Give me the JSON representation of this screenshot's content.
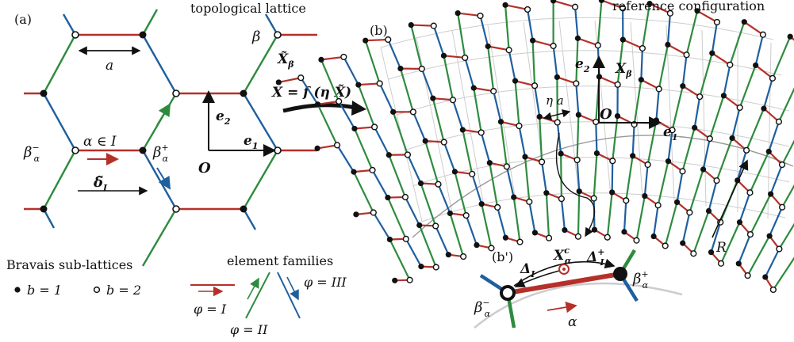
{
  "panels": {
    "a": {
      "tag": "(a)",
      "title": "topological lattice",
      "lattice_spacing": "a",
      "edge_label": "α ∈ I",
      "node_minus": "β",
      "node_plus": "β",
      "node_sub": "α",
      "minus_sup": "−",
      "plus_sup": "+",
      "beta_tilde": "β",
      "x_tilde_beta": "X̃",
      "x_tilde_sub": "β",
      "delta_tilde": "δ̃",
      "delta_sub": "I",
      "e1": "e",
      "e1_sub": "1",
      "e2": "e",
      "e2_sub": "2",
      "origin": "O"
    },
    "map_label": "X = f (η X̃)",
    "b": {
      "tag": "(b)",
      "title": "reference configuration",
      "x_beta": "X",
      "x_beta_sub": "β",
      "e1": "e",
      "e1_sub": "1",
      "e2": "e",
      "e2_sub": "2",
      "origin": "O",
      "eta_a": "η a",
      "radius": "R"
    },
    "b_prime": {
      "tag": "(b')",
      "delta_minus": "Δ",
      "delta_minus_sub": "I",
      "delta_plus": "Δ",
      "delta_plus_sub": "I",
      "delta_plus_sup": "+",
      "xc": "X",
      "xc_sub": "α",
      "xc_sup": "c",
      "beta": "β",
      "sub": "α",
      "minus_sup": "−",
      "plus_sup": "+",
      "alpha": "α"
    }
  },
  "legend": {
    "sublattices_title": "Bravais sub-lattices",
    "b1": "b = 1",
    "b2": "b = 2",
    "families_title": "element families",
    "phi_I": "φ = I",
    "phi_II": "φ = II",
    "phi_III": "φ = III"
  },
  "colors": {
    "family_I": "#b5302a",
    "family_II": "#2e8b3e",
    "family_III": "#1f5f9e",
    "grid": "#cccccc"
  }
}
